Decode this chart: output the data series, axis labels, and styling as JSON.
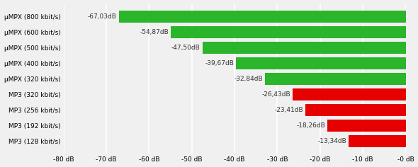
{
  "categories": [
    "μMPX (800 kbit/s)",
    "μMPX (600 kbit/s)",
    "μMPX (500 kbit/s)",
    "μMPX (400 kbit/s)",
    "μMPX (320 kbit/s)",
    "MP3 (320 kbit/s)",
    "MP3 (256 kbit/s)",
    "MP3 (192 kbit/s)",
    "MP3 (128 kbit/s)"
  ],
  "values": [
    -67.03,
    -54.87,
    -47.5,
    -39.67,
    -32.84,
    -26.43,
    -23.41,
    -18.26,
    -13.34
  ],
  "labels": [
    "-67,03dB",
    "-54,87dB",
    "-47,50dB",
    "-39,67dB",
    "-32,84dB",
    "-26,43dB",
    "-23,41dB",
    "-18,26dB",
    "-13,34dB"
  ],
  "colors": [
    "#2ab52a",
    "#2ab52a",
    "#2ab52a",
    "#2ab52a",
    "#2ab52a",
    "#e60000",
    "#e60000",
    "#e60000",
    "#e60000"
  ],
  "xlim": [
    -80,
    0
  ],
  "xticks": [
    -80,
    -70,
    -60,
    -50,
    -40,
    -30,
    -20,
    -10,
    0
  ],
  "xtick_labels": [
    "-80 dB",
    "-70 dB",
    "-60 dB",
    "-50 dB",
    "-40 dB",
    "-30 dB",
    "-20 dB",
    "-10 dB",
    "-0 dB"
  ],
  "bar_height": 0.78,
  "label_fontsize": 6.5,
  "ytick_fontsize": 6.5,
  "xtick_fontsize": 6.5,
  "background_color": "#f0f0f0",
  "grid_color": "#ffffff",
  "bar_label_color": "#333333",
  "fig_width": 5.9,
  "fig_height": 2.36,
  "dpi": 100
}
